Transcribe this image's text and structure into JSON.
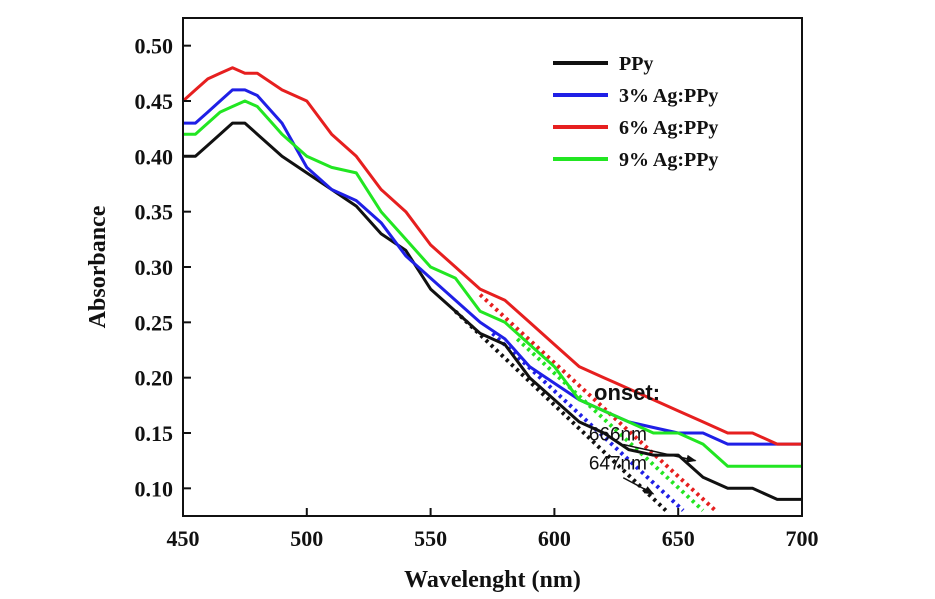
{
  "chart_data": {
    "type": "line",
    "xlabel": "Wavelenght (nm)",
    "ylabel": "Absorbance",
    "xlim": [
      450,
      700
    ],
    "ylim": [
      0.075,
      0.525
    ],
    "xticks": [
      450,
      500,
      550,
      600,
      650,
      700
    ],
    "xtick_labels": [
      "450",
      "500",
      "550",
      "600",
      "650",
      "700"
    ],
    "yticks": [
      0.1,
      0.15,
      0.2,
      0.25,
      0.3,
      0.35,
      0.4,
      0.45,
      0.5
    ],
    "ytick_labels": [
      "0.10",
      "0.15",
      "0.20",
      "0.25",
      "0.30",
      "0.35",
      "0.40",
      "0.45",
      "0.50"
    ],
    "legend_position": "top-right",
    "grid": false,
    "series": [
      {
        "name": "PPy",
        "color": "#111111",
        "x": [
          450,
          455,
          460,
          465,
          470,
          475,
          480,
          490,
          500,
          510,
          520,
          530,
          540,
          550,
          560,
          570,
          580,
          590,
          600,
          610,
          620,
          630,
          640,
          650,
          660,
          670,
          680,
          690,
          700
        ],
        "y": [
          0.4,
          0.4,
          0.41,
          0.42,
          0.43,
          0.43,
          0.42,
          0.4,
          0.385,
          0.37,
          0.355,
          0.33,
          0.315,
          0.28,
          0.26,
          0.24,
          0.23,
          0.2,
          0.18,
          0.16,
          0.15,
          0.135,
          0.13,
          0.13,
          0.11,
          0.1,
          0.1,
          0.09,
          0.09
        ]
      },
      {
        "name": "3% Ag:PPy",
        "color": "#1f1fe6",
        "x": [
          450,
          455,
          460,
          465,
          470,
          475,
          480,
          490,
          500,
          510,
          520,
          530,
          540,
          550,
          560,
          570,
          580,
          590,
          600,
          610,
          620,
          630,
          640,
          650,
          660,
          670,
          680,
          690,
          700
        ],
        "y": [
          0.43,
          0.43,
          0.44,
          0.45,
          0.46,
          0.46,
          0.455,
          0.43,
          0.39,
          0.37,
          0.36,
          0.34,
          0.31,
          0.29,
          0.27,
          0.25,
          0.235,
          0.21,
          0.195,
          0.18,
          0.17,
          0.16,
          0.155,
          0.15,
          0.15,
          0.14,
          0.14,
          0.14,
          0.14
        ]
      },
      {
        "name": "6% Ag:PPy",
        "color": "#e61f1f",
        "x": [
          450,
          455,
          460,
          465,
          470,
          475,
          480,
          490,
          500,
          510,
          520,
          530,
          540,
          550,
          560,
          570,
          580,
          590,
          600,
          610,
          620,
          630,
          640,
          650,
          660,
          670,
          680,
          690,
          700
        ],
        "y": [
          0.45,
          0.46,
          0.47,
          0.475,
          0.48,
          0.475,
          0.475,
          0.46,
          0.45,
          0.42,
          0.4,
          0.37,
          0.35,
          0.32,
          0.3,
          0.28,
          0.27,
          0.25,
          0.23,
          0.21,
          0.2,
          0.19,
          0.18,
          0.17,
          0.16,
          0.15,
          0.15,
          0.14,
          0.14
        ]
      },
      {
        "name": "9% Ag:PPy",
        "color": "#22e622",
        "x": [
          450,
          455,
          460,
          465,
          470,
          475,
          480,
          490,
          500,
          510,
          520,
          530,
          540,
          550,
          560,
          570,
          580,
          590,
          600,
          610,
          620,
          630,
          640,
          650,
          660,
          670,
          680,
          690,
          700
        ],
        "y": [
          0.42,
          0.42,
          0.43,
          0.44,
          0.445,
          0.45,
          0.445,
          0.42,
          0.4,
          0.39,
          0.385,
          0.35,
          0.325,
          0.3,
          0.29,
          0.26,
          0.25,
          0.23,
          0.21,
          0.18,
          0.17,
          0.16,
          0.15,
          0.15,
          0.14,
          0.12,
          0.12,
          0.12,
          0.12
        ]
      }
    ],
    "extrapolations": [
      {
        "color": "#111111",
        "x": [
          560,
          645
        ],
        "y": [
          0.26,
          0.08
        ]
      },
      {
        "color": "#1f1fe6",
        "x": [
          575,
          652
        ],
        "y": [
          0.24,
          0.08
        ]
      },
      {
        "color": "#e61f1f",
        "x": [
          570,
          665
        ],
        "y": [
          0.275,
          0.08
        ]
      },
      {
        "color": "#22e622",
        "x": [
          585,
          660
        ],
        "y": [
          0.235,
          0.08
        ]
      }
    ],
    "annotations": {
      "title": "onset:",
      "items": [
        {
          "label": "666nm",
          "text_x": 622,
          "text_y": 0.143,
          "arrow_from": [
            627,
            0.145
          ],
          "arrow_to": [
            657,
            0.125
          ]
        },
        {
          "label": "647nm",
          "text_x": 622,
          "text_y": 0.117,
          "arrow_from": [
            627,
            0.115
          ],
          "arrow_to": [
            640,
            0.095
          ]
        }
      ],
      "title_x": 616,
      "title_y": 0.18
    }
  }
}
